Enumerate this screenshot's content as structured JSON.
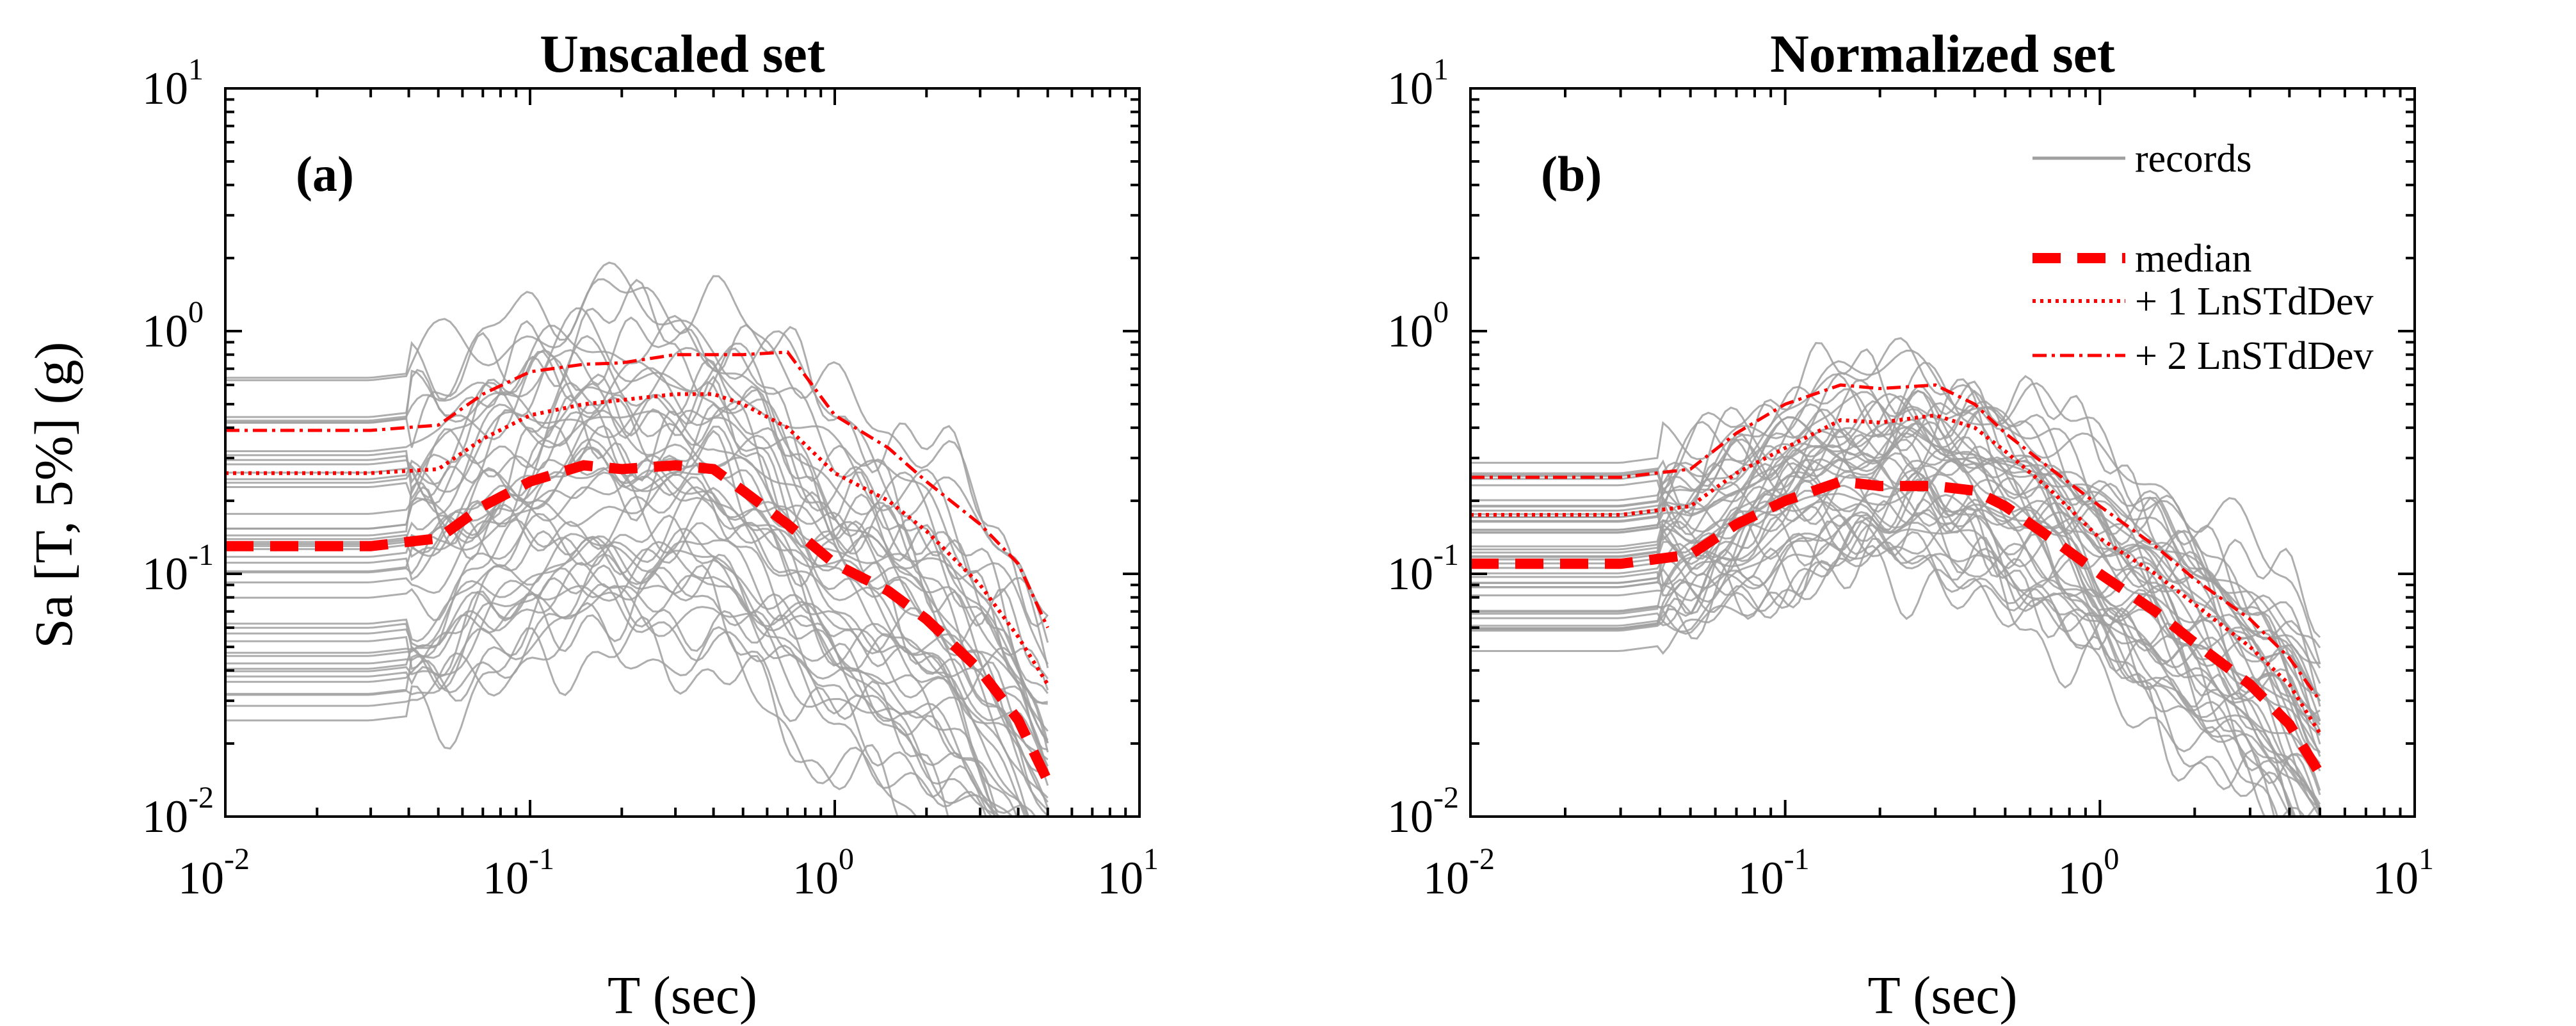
{
  "figure": {
    "ylabel": "Sa [T, 5%] (g)",
    "xlabel": "T (sec)"
  },
  "legend": {
    "records": "records",
    "median": "median",
    "plus1": "+ 1 LnSTdDev",
    "plus2": "+ 2 LnSTdDev"
  },
  "colors": {
    "records": "#a0a0a0",
    "statistics": "#ff0000",
    "axes": "#000000"
  },
  "chart_data": [
    {
      "type": "line",
      "id": "a",
      "title": "Unscaled set",
      "panel_label": "(a)",
      "xscale": "log",
      "yscale": "log",
      "xlim": [
        0.01,
        10
      ],
      "ylim": [
        0.01,
        10
      ],
      "xlabel": "T (sec)",
      "ylabel": "Sa [T, 5%] (g)",
      "x_ticks": [
        0.01,
        0.1,
        1,
        10
      ],
      "y_ticks": [
        0.01,
        0.1,
        1,
        10
      ],
      "tick_labels": [
        "10",
        "10",
        "10",
        "10"
      ],
      "tick_exponents": [
        "-2",
        "-1",
        "0",
        "1"
      ],
      "legend_visible": false,
      "periods": [
        0.01,
        0.03,
        0.05,
        0.07,
        0.1,
        0.15,
        0.2,
        0.3,
        0.4,
        0.5,
        0.7,
        1,
        1.5,
        2,
        3,
        4,
        5
      ],
      "median": [
        0.13,
        0.13,
        0.14,
        0.19,
        0.24,
        0.28,
        0.27,
        0.28,
        0.27,
        0.22,
        0.16,
        0.11,
        0.085,
        0.065,
        0.04,
        0.025,
        0.014
      ],
      "plus_1_lnstddev": [
        0.26,
        0.26,
        0.27,
        0.36,
        0.45,
        0.5,
        0.52,
        0.55,
        0.55,
        0.5,
        0.4,
        0.26,
        0.2,
        0.15,
        0.09,
        0.055,
        0.035
      ],
      "plus_2_lnstddev": [
        0.39,
        0.39,
        0.41,
        0.55,
        0.68,
        0.73,
        0.74,
        0.8,
        0.8,
        0.8,
        0.82,
        0.45,
        0.33,
        0.24,
        0.16,
        0.11,
        0.06
      ],
      "record_count": 44,
      "record_seed": 7,
      "record_pga_range": [
        0.024,
        0.65
      ],
      "record_scatter_lnstd": 0.55
    },
    {
      "type": "line",
      "id": "b",
      "title": "Normalized set",
      "panel_label": "(b)",
      "xscale": "log",
      "yscale": "log",
      "xlim": [
        0.01,
        10
      ],
      "ylim": [
        0.01,
        10
      ],
      "xlabel": "T (sec)",
      "ylabel": "",
      "x_ticks": [
        0.01,
        0.1,
        1,
        10
      ],
      "y_ticks": [
        0.01,
        0.1,
        1,
        10
      ],
      "tick_labels": [
        "10",
        "10",
        "10",
        "10"
      ],
      "tick_exponents": [
        "-2",
        "-1",
        "0",
        "1"
      ],
      "legend_visible": true,
      "legend_position": "top-right",
      "periods": [
        0.01,
        0.03,
        0.05,
        0.07,
        0.1,
        0.15,
        0.2,
        0.3,
        0.4,
        0.5,
        0.7,
        1,
        1.5,
        2,
        3,
        4,
        5
      ],
      "median": [
        0.11,
        0.11,
        0.12,
        0.16,
        0.2,
        0.24,
        0.23,
        0.23,
        0.22,
        0.19,
        0.14,
        0.1,
        0.07,
        0.052,
        0.035,
        0.024,
        0.015
      ],
      "plus_1_lnstddev": [
        0.175,
        0.175,
        0.19,
        0.26,
        0.33,
        0.43,
        0.42,
        0.45,
        0.4,
        0.32,
        0.22,
        0.14,
        0.1,
        0.075,
        0.05,
        0.035,
        0.022
      ],
      "plus_2_lnstddev": [
        0.25,
        0.25,
        0.27,
        0.38,
        0.5,
        0.6,
        0.58,
        0.6,
        0.5,
        0.38,
        0.27,
        0.19,
        0.13,
        0.095,
        0.065,
        0.045,
        0.03
      ],
      "record_count": 44,
      "record_seed": 11,
      "record_pga_range": [
        0.045,
        0.29
      ],
      "record_scatter_lnstd": 0.4
    }
  ]
}
